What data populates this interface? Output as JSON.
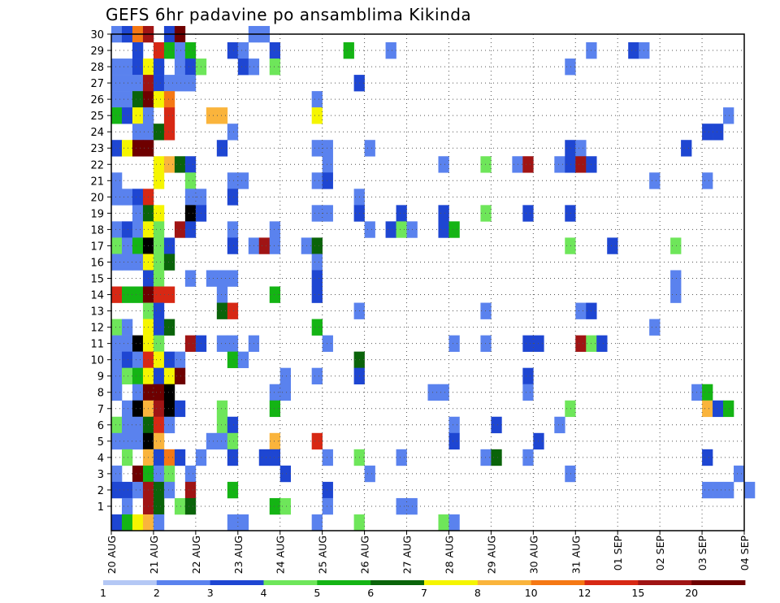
{
  "chart_data": {
    "type": "heatmap",
    "title": "GEFS 6hr padavine po ansamblima Kikinda",
    "x_tick_labels": [
      "20 AUG",
      "21 AUG",
      "22 AUG",
      "23 AUG",
      "24 AUG",
      "25 AUG",
      "26 AUG",
      "27 AUG",
      "28 AUG",
      "29 AUG",
      "30 AUG",
      "31 AUG",
      "01 SEP",
      "02 SEP",
      "03 SEP",
      "04 SEP"
    ],
    "x_range_days": [
      0,
      15
    ],
    "steps_per_day": 4,
    "y_tick_labels": [
      "1",
      "2",
      "3",
      "4",
      "5",
      "6",
      "7",
      "8",
      "9",
      "10",
      "11",
      "12",
      "13",
      "14",
      "15",
      "16",
      "17",
      "18",
      "19",
      "20",
      "21",
      "22",
      "23",
      "24",
      "25",
      "26",
      "27",
      "28",
      "29",
      "30"
    ],
    "y_range": [
      0,
      30
    ],
    "grid": true,
    "colorbar": {
      "labels": [
        "1",
        "2",
        "3",
        "4",
        "5",
        "6",
        "7",
        "8",
        "10",
        "12",
        "15",
        "20"
      ],
      "colors": [
        "#b4c8f5",
        "#5a82ee",
        "#1e46d2",
        "#6ee65a",
        "#14b414",
        "#0a640a",
        "#f5f500",
        "#fab43c",
        "#f57814",
        "#d72814",
        "#a01414",
        "#6e0000"
      ]
    },
    "cells": [
      [
        0,
        30,
        1
      ],
      [
        1,
        30,
        2
      ],
      [
        2,
        30,
        8
      ],
      [
        3,
        30,
        10
      ],
      [
        5,
        30,
        2
      ],
      [
        6,
        30,
        11
      ],
      [
        13,
        30,
        1
      ],
      [
        14,
        30,
        1
      ],
      [
        2,
        29,
        2
      ],
      [
        4,
        29,
        9
      ],
      [
        5,
        29,
        4
      ],
      [
        6,
        29,
        1
      ],
      [
        7,
        29,
        4
      ],
      [
        11,
        29,
        2
      ],
      [
        12,
        29,
        1
      ],
      [
        15,
        29,
        2
      ],
      [
        22,
        29,
        4
      ],
      [
        26,
        29,
        1
      ],
      [
        45,
        29,
        1
      ],
      [
        49,
        29,
        2
      ],
      [
        50,
        29,
        1
      ],
      [
        0,
        28,
        1
      ],
      [
        1,
        28,
        1
      ],
      [
        2,
        28,
        2
      ],
      [
        3,
        28,
        6
      ],
      [
        4,
        28,
        2
      ],
      [
        6,
        28,
        1
      ],
      [
        7,
        28,
        2
      ],
      [
        8,
        28,
        3
      ],
      [
        12,
        28,
        2
      ],
      [
        13,
        28,
        1
      ],
      [
        15,
        28,
        3
      ],
      [
        43,
        28,
        1
      ],
      [
        0,
        27,
        1
      ],
      [
        1,
        27,
        1
      ],
      [
        2,
        27,
        1
      ],
      [
        3,
        27,
        10
      ],
      [
        4,
        27,
        2
      ],
      [
        5,
        27,
        1
      ],
      [
        6,
        27,
        1
      ],
      [
        7,
        27,
        1
      ],
      [
        23,
        27,
        2
      ],
      [
        0,
        26,
        1
      ],
      [
        1,
        26,
        1
      ],
      [
        2,
        26,
        5
      ],
      [
        3,
        26,
        11
      ],
      [
        4,
        26,
        6
      ],
      [
        5,
        26,
        8
      ],
      [
        19,
        26,
        1
      ],
      [
        0,
        25,
        4
      ],
      [
        1,
        25,
        2
      ],
      [
        2,
        25,
        6
      ],
      [
        3,
        25,
        1
      ],
      [
        5,
        25,
        9
      ],
      [
        9,
        25,
        7
      ],
      [
        10,
        25,
        7
      ],
      [
        19,
        25,
        6
      ],
      [
        58,
        25,
        1
      ],
      [
        2,
        24,
        1
      ],
      [
        3,
        24,
        1
      ],
      [
        4,
        24,
        5
      ],
      [
        5,
        24,
        9
      ],
      [
        11,
        24,
        1
      ],
      [
        56,
        24,
        2
      ],
      [
        57,
        24,
        2
      ],
      [
        0,
        23,
        2
      ],
      [
        1,
        23,
        6
      ],
      [
        2,
        23,
        11
      ],
      [
        3,
        23,
        11
      ],
      [
        10,
        23,
        2
      ],
      [
        19,
        23,
        1
      ],
      [
        20,
        23,
        1
      ],
      [
        24,
        23,
        1
      ],
      [
        43,
        23,
        2
      ],
      [
        44,
        23,
        1
      ],
      [
        54,
        23,
        2
      ],
      [
        4,
        22,
        6
      ],
      [
        5,
        22,
        7
      ],
      [
        6,
        22,
        5
      ],
      [
        7,
        22,
        2
      ],
      [
        20,
        22,
        1
      ],
      [
        31,
        22,
        1
      ],
      [
        35,
        22,
        3
      ],
      [
        38,
        22,
        1
      ],
      [
        39,
        22,
        10
      ],
      [
        42,
        22,
        1
      ],
      [
        43,
        22,
        2
      ],
      [
        44,
        22,
        10
      ],
      [
        45,
        22,
        2
      ],
      [
        0,
        21,
        1
      ],
      [
        4,
        21,
        6
      ],
      [
        7,
        21,
        3
      ],
      [
        11,
        21,
        1
      ],
      [
        12,
        21,
        1
      ],
      [
        19,
        21,
        1
      ],
      [
        20,
        21,
        2
      ],
      [
        51,
        21,
        1
      ],
      [
        56,
        21,
        1
      ],
      [
        0,
        20,
        1
      ],
      [
        1,
        20,
        1
      ],
      [
        2,
        20,
        2
      ],
      [
        3,
        20,
        9
      ],
      [
        7,
        20,
        1
      ],
      [
        8,
        20,
        1
      ],
      [
        11,
        20,
        2
      ],
      [
        23,
        20,
        1
      ],
      [
        2,
        19,
        1
      ],
      [
        3,
        19,
        5
      ],
      [
        4,
        19,
        6
      ],
      [
        7,
        19,
        12
      ],
      [
        8,
        19,
        2
      ],
      [
        19,
        19,
        1
      ],
      [
        20,
        19,
        1
      ],
      [
        23,
        19,
        2
      ],
      [
        27,
        19,
        2
      ],
      [
        31,
        19,
        2
      ],
      [
        35,
        19,
        3
      ],
      [
        39,
        19,
        2
      ],
      [
        43,
        19,
        2
      ],
      [
        0,
        18,
        1
      ],
      [
        1,
        18,
        2
      ],
      [
        2,
        18,
        1
      ],
      [
        3,
        18,
        6
      ],
      [
        4,
        18,
        3
      ],
      [
        6,
        18,
        10
      ],
      [
        7,
        18,
        2
      ],
      [
        11,
        18,
        1
      ],
      [
        15,
        18,
        1
      ],
      [
        24,
        18,
        1
      ],
      [
        26,
        18,
        2
      ],
      [
        27,
        18,
        3
      ],
      [
        28,
        18,
        1
      ],
      [
        31,
        18,
        2
      ],
      [
        32,
        18,
        4
      ],
      [
        0,
        17,
        3
      ],
      [
        1,
        17,
        1
      ],
      [
        2,
        17,
        4
      ],
      [
        3,
        17,
        12
      ],
      [
        4,
        17,
        3
      ],
      [
        5,
        17,
        2
      ],
      [
        11,
        17,
        2
      ],
      [
        13,
        17,
        1
      ],
      [
        14,
        17,
        10
      ],
      [
        15,
        17,
        1
      ],
      [
        18,
        17,
        1
      ],
      [
        19,
        17,
        5
      ],
      [
        43,
        17,
        3
      ],
      [
        47,
        17,
        2
      ],
      [
        53,
        17,
        3
      ],
      [
        0,
        16,
        1
      ],
      [
        1,
        16,
        1
      ],
      [
        2,
        16,
        1
      ],
      [
        3,
        16,
        6
      ],
      [
        4,
        16,
        3
      ],
      [
        5,
        16,
        5
      ],
      [
        19,
        16,
        1
      ],
      [
        3,
        15,
        2
      ],
      [
        4,
        15,
        3
      ],
      [
        7,
        15,
        1
      ],
      [
        9,
        15,
        1
      ],
      [
        10,
        15,
        1
      ],
      [
        11,
        15,
        1
      ],
      [
        19,
        15,
        2
      ],
      [
        53,
        15,
        1
      ],
      [
        0,
        14,
        9
      ],
      [
        1,
        14,
        4
      ],
      [
        2,
        14,
        4
      ],
      [
        3,
        14,
        11
      ],
      [
        4,
        14,
        9
      ],
      [
        5,
        14,
        9
      ],
      [
        10,
        14,
        1
      ],
      [
        15,
        14,
        4
      ],
      [
        19,
        14,
        2
      ],
      [
        53,
        14,
        1
      ],
      [
        3,
        13,
        3
      ],
      [
        4,
        13,
        2
      ],
      [
        10,
        13,
        5
      ],
      [
        11,
        13,
        9
      ],
      [
        23,
        13,
        1
      ],
      [
        35,
        13,
        1
      ],
      [
        44,
        13,
        1
      ],
      [
        45,
        13,
        2
      ],
      [
        0,
        12,
        3
      ],
      [
        1,
        12,
        1
      ],
      [
        3,
        12,
        6
      ],
      [
        4,
        12,
        2
      ],
      [
        5,
        12,
        5
      ],
      [
        19,
        12,
        4
      ],
      [
        51,
        12,
        1
      ],
      [
        0,
        11,
        1
      ],
      [
        1,
        11,
        1
      ],
      [
        2,
        11,
        12
      ],
      [
        3,
        11,
        6
      ],
      [
        4,
        11,
        3
      ],
      [
        7,
        11,
        10
      ],
      [
        8,
        11,
        2
      ],
      [
        10,
        11,
        1
      ],
      [
        11,
        11,
        1
      ],
      [
        13,
        11,
        1
      ],
      [
        20,
        11,
        1
      ],
      [
        32,
        11,
        1
      ],
      [
        35,
        11,
        1
      ],
      [
        39,
        11,
        2
      ],
      [
        40,
        11,
        2
      ],
      [
        44,
        11,
        10
      ],
      [
        45,
        11,
        3
      ],
      [
        46,
        11,
        2
      ],
      [
        0,
        10,
        1
      ],
      [
        1,
        10,
        2
      ],
      [
        2,
        10,
        1
      ],
      [
        3,
        10,
        9
      ],
      [
        4,
        10,
        6
      ],
      [
        5,
        10,
        2
      ],
      [
        6,
        10,
        1
      ],
      [
        11,
        10,
        4
      ],
      [
        12,
        10,
        1
      ],
      [
        23,
        10,
        5
      ],
      [
        0,
        9,
        1
      ],
      [
        1,
        9,
        3
      ],
      [
        2,
        9,
        4
      ],
      [
        3,
        9,
        6
      ],
      [
        4,
        9,
        2
      ],
      [
        5,
        9,
        6
      ],
      [
        6,
        9,
        11
      ],
      [
        16,
        9,
        1
      ],
      [
        19,
        9,
        1
      ],
      [
        23,
        9,
        2
      ],
      [
        39,
        9,
        2
      ],
      [
        0,
        8,
        1
      ],
      [
        2,
        8,
        1
      ],
      [
        3,
        8,
        11
      ],
      [
        4,
        8,
        11
      ],
      [
        5,
        8,
        12
      ],
      [
        15,
        8,
        1
      ],
      [
        16,
        8,
        1
      ],
      [
        30,
        8,
        1
      ],
      [
        31,
        8,
        1
      ],
      [
        39,
        8,
        1
      ],
      [
        55,
        8,
        1
      ],
      [
        56,
        8,
        4
      ],
      [
        1,
        7,
        1
      ],
      [
        2,
        7,
        12
      ],
      [
        3,
        7,
        7
      ],
      [
        4,
        7,
        10
      ],
      [
        5,
        7,
        12
      ],
      [
        6,
        7,
        2
      ],
      [
        10,
        7,
        3
      ],
      [
        15,
        7,
        4
      ],
      [
        43,
        7,
        3
      ],
      [
        56,
        7,
        7
      ],
      [
        57,
        7,
        2
      ],
      [
        58,
        7,
        4
      ],
      [
        0,
        6,
        3
      ],
      [
        1,
        6,
        1
      ],
      [
        2,
        6,
        1
      ],
      [
        3,
        6,
        5
      ],
      [
        4,
        6,
        9
      ],
      [
        5,
        6,
        1
      ],
      [
        10,
        6,
        3
      ],
      [
        11,
        6,
        2
      ],
      [
        32,
        6,
        1
      ],
      [
        36,
        6,
        2
      ],
      [
        42,
        6,
        1
      ],
      [
        0,
        5,
        1
      ],
      [
        1,
        5,
        1
      ],
      [
        2,
        5,
        1
      ],
      [
        3,
        5,
        12
      ],
      [
        4,
        5,
        7
      ],
      [
        9,
        5,
        1
      ],
      [
        10,
        5,
        1
      ],
      [
        11,
        5,
        3
      ],
      [
        15,
        5,
        7
      ],
      [
        19,
        5,
        9
      ],
      [
        32,
        5,
        2
      ],
      [
        40,
        5,
        2
      ],
      [
        1,
        4,
        3
      ],
      [
        3,
        4,
        7
      ],
      [
        4,
        4,
        2
      ],
      [
        5,
        4,
        8
      ],
      [
        6,
        4,
        2
      ],
      [
        8,
        4,
        1
      ],
      [
        11,
        4,
        2
      ],
      [
        14,
        4,
        2
      ],
      [
        15,
        4,
        2
      ],
      [
        20,
        4,
        1
      ],
      [
        23,
        4,
        3
      ],
      [
        27,
        4,
        1
      ],
      [
        35,
        4,
        1
      ],
      [
        36,
        4,
        5
      ],
      [
        39,
        4,
        1
      ],
      [
        56,
        4,
        2
      ],
      [
        0,
        3,
        1
      ],
      [
        2,
        3,
        11
      ],
      [
        3,
        3,
        4
      ],
      [
        4,
        3,
        1
      ],
      [
        5,
        3,
        3
      ],
      [
        7,
        3,
        1
      ],
      [
        16,
        3,
        2
      ],
      [
        24,
        3,
        1
      ],
      [
        43,
        3,
        1
      ],
      [
        59,
        3,
        1
      ],
      [
        0,
        2,
        2
      ],
      [
        1,
        2,
        2
      ],
      [
        2,
        2,
        1
      ],
      [
        3,
        2,
        10
      ],
      [
        4,
        2,
        5
      ],
      [
        5,
        2,
        1
      ],
      [
        7,
        2,
        10
      ],
      [
        11,
        2,
        4
      ],
      [
        20,
        2,
        2
      ],
      [
        56,
        2,
        1
      ],
      [
        57,
        2,
        1
      ],
      [
        58,
        2,
        1
      ],
      [
        60,
        2,
        1
      ],
      [
        1,
        1,
        1
      ],
      [
        3,
        1,
        10
      ],
      [
        4,
        1,
        5
      ],
      [
        6,
        1,
        3
      ],
      [
        7,
        1,
        5
      ],
      [
        15,
        1,
        4
      ],
      [
        16,
        1,
        3
      ],
      [
        20,
        1,
        1
      ],
      [
        27,
        1,
        1
      ],
      [
        28,
        1,
        1
      ],
      [
        0,
        0,
        2
      ],
      [
        1,
        0,
        4
      ],
      [
        2,
        0,
        6
      ],
      [
        3,
        0,
        7
      ],
      [
        4,
        0,
        1
      ],
      [
        11,
        0,
        1
      ],
      [
        12,
        0,
        1
      ],
      [
        19,
        0,
        1
      ],
      [
        23,
        0,
        3
      ],
      [
        31,
        0,
        3
      ],
      [
        32,
        0,
        1
      ]
    ]
  }
}
